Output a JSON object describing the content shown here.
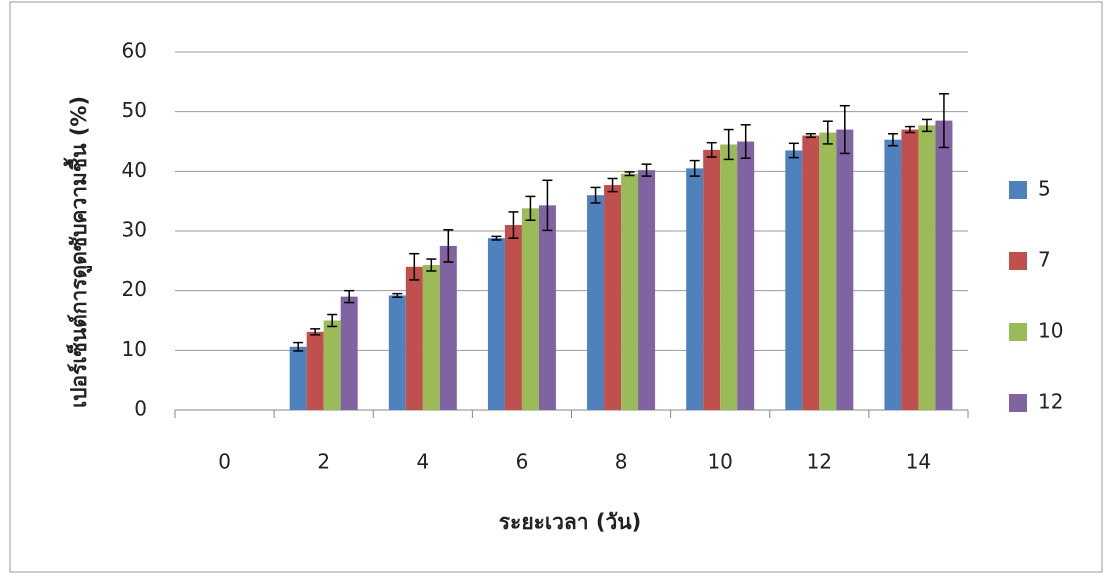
{
  "chart_data": {
    "type": "bar",
    "xlabel": "ระยะเวลา (วัน)",
    "ylabel": "เปอร์เซ็นต์การดูดซับความชื้น (%)",
    "categories": [
      "0",
      "2",
      "4",
      "6",
      "8",
      "10",
      "12",
      "14"
    ],
    "series": [
      {
        "name": "5",
        "color": "#4f81bd",
        "values": [
          0,
          10.6,
          19.2,
          28.8,
          36.0,
          40.5,
          43.5,
          45.3
        ],
        "errors": [
          0,
          0.7,
          0.3,
          0.3,
          1.3,
          1.3,
          1.2,
          1.0
        ]
      },
      {
        "name": "7",
        "color": "#c0504d",
        "values": [
          0,
          13.1,
          24.0,
          31.0,
          37.7,
          43.6,
          46.0,
          47.0
        ],
        "errors": [
          0,
          0.5,
          2.2,
          2.2,
          1.1,
          1.2,
          0.3,
          0.5
        ]
      },
      {
        "name": "10",
        "color": "#9bbb59",
        "values": [
          0,
          15.0,
          24.3,
          33.8,
          39.6,
          44.5,
          46.5,
          47.7
        ],
        "errors": [
          0,
          1.0,
          1.0,
          2.0,
          0.3,
          2.5,
          1.9,
          1.0
        ]
      },
      {
        "name": "12",
        "color": "#8064a2",
        "values": [
          0,
          19.0,
          27.5,
          34.3,
          40.2,
          45.0,
          47.0,
          48.5
        ],
        "errors": [
          0,
          1.0,
          2.7,
          4.2,
          1.0,
          2.8,
          4.0,
          4.5
        ]
      }
    ],
    "ylim": [
      0,
      60
    ],
    "yticks": [
      0,
      10,
      20,
      30,
      40,
      50,
      60
    ],
    "grid": true,
    "legend": "right"
  }
}
